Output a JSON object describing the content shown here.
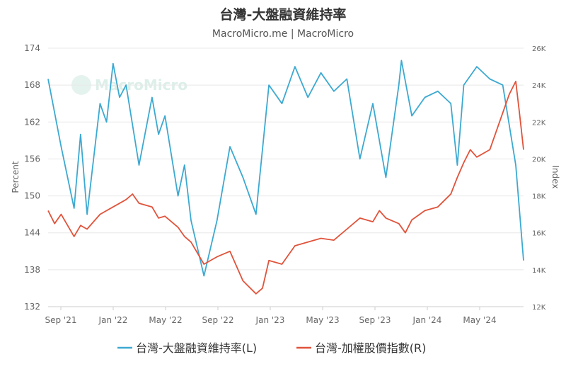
{
  "chart_data": {
    "type": "line",
    "title": "台灣-大盤融資維持率",
    "subtitle": "MacroMicro.me | MacroMicro",
    "watermark": "MacroMicro",
    "ylabel_left": "Percent",
    "ylabel_right": "Index",
    "ylim_left": [
      132,
      174
    ],
    "yticks_left": [
      "174",
      "168",
      "162",
      "156",
      "150",
      "144",
      "138",
      "132"
    ],
    "ylim_right": [
      12000,
      26000
    ],
    "yticks_right": [
      "26K",
      "24K",
      "22K",
      "20K",
      "18K",
      "16K",
      "14K",
      "12K"
    ],
    "xticks": [
      "Sep '21",
      "Jan '22",
      "May '22",
      "Sep '22",
      "Jan '23",
      "May '23",
      "Sep '23",
      "Jan '24",
      "May '24"
    ],
    "grid": true,
    "legend_position": "bottom",
    "series": [
      {
        "name": "台灣-大盤融資維持率(L)",
        "axis": "left",
        "color": "#3ca9d1",
        "x": [
          0,
          1,
          2,
          2.5,
          3,
          4,
          4.5,
          5,
          5.5,
          6,
          7,
          8,
          8.5,
          9,
          10,
          10.5,
          11,
          12,
          13,
          14,
          15,
          15.5,
          16,
          17,
          18,
          19,
          20,
          21,
          22,
          23,
          24,
          25,
          26,
          27,
          27.2,
          28,
          29,
          30,
          31,
          31.5,
          32,
          33,
          34,
          35,
          36,
          36.6
        ],
        "values": [
          169,
          158,
          148,
          160,
          147,
          165,
          162,
          171.5,
          166,
          168,
          155,
          166,
          160,
          163,
          150,
          155,
          146,
          137,
          146,
          158,
          153,
          150,
          147,
          168,
          165,
          171,
          166,
          170,
          167,
          169,
          156,
          165,
          153,
          168,
          172,
          163,
          166,
          167,
          165,
          155,
          168,
          171,
          169,
          168,
          155,
          139.5
        ]
      },
      {
        "name": "台灣-加權股價指數(R)",
        "axis": "right",
        "color": "#e0533b",
        "x": [
          0,
          0.5,
          1,
          2,
          2.5,
          3,
          4,
          5,
          6,
          6.5,
          7,
          8,
          8.5,
          9,
          10,
          10.5,
          11,
          12,
          13,
          14,
          15,
          16,
          16.5,
          17,
          18,
          19,
          20,
          21,
          22,
          23,
          24,
          25,
          25.5,
          26,
          27,
          27.5,
          28,
          29,
          30,
          31,
          31.5,
          32,
          32.5,
          33,
          34,
          35,
          35.5,
          36,
          36.3,
          36.6
        ],
        "values": [
          17.2,
          16.5,
          17,
          15.8,
          16.4,
          16.2,
          17.0,
          17.4,
          17.8,
          18.1,
          17.6,
          17.4,
          16.8,
          16.9,
          16.3,
          15.8,
          15.5,
          14.3,
          14.7,
          15.0,
          13.4,
          12.7,
          13.0,
          14.5,
          14.3,
          15.3,
          15.5,
          15.7,
          15.6,
          16.2,
          16.8,
          16.6,
          17.2,
          16.8,
          16.5,
          16.0,
          16.7,
          17.2,
          17.4,
          18.1,
          19.0,
          19.8,
          20.5,
          20.1,
          20.5,
          22.5,
          23.5,
          24.2,
          22.4,
          20.5
        ]
      }
    ]
  }
}
